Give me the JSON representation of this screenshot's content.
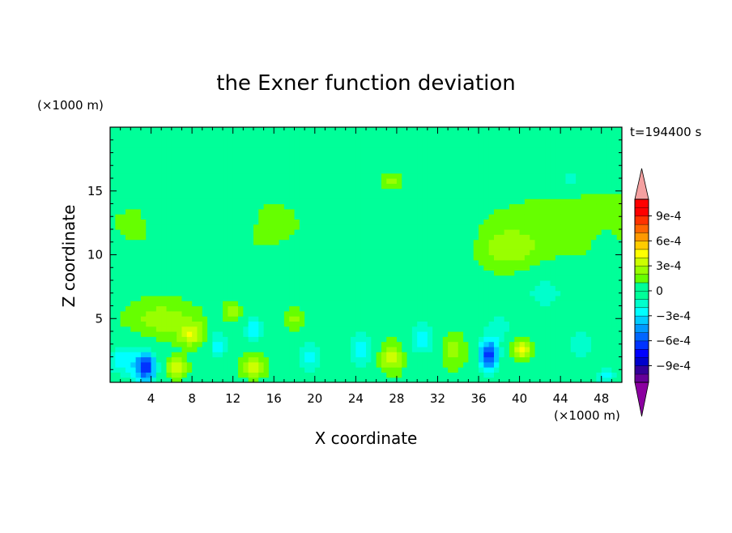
{
  "chart_data": {
    "type": "heatmap",
    "title": "the Exner function deviation",
    "xlabel": "X coordinate",
    "ylabel": "Z coordinate",
    "x_unit": "(×1000 m)",
    "y_unit": "(×1000 m)",
    "time_label": "t=194400 s",
    "xlim": [
      0,
      50
    ],
    "ylim": [
      0,
      20
    ],
    "x_ticks": [
      4,
      8,
      12,
      16,
      20,
      24,
      28,
      32,
      36,
      40,
      44,
      48
    ],
    "y_ticks": [
      5,
      10,
      15
    ],
    "colorbar": {
      "levels": [
        -0.0011,
        -0.001,
        -0.0009,
        -0.0008,
        -0.0007,
        -0.0006,
        -0.0005,
        -0.0004,
        -0.0003,
        -0.0002,
        -0.0001,
        0,
        0.0001,
        0.0002,
        0.0003,
        0.0004,
        0.0005,
        0.0006,
        0.0007,
        0.0008,
        0.0009,
        0.001,
        0.0011
      ],
      "tick_labels": [
        {
          "value": 0.0009,
          "label": "9e-4"
        },
        {
          "value": 0.0006,
          "label": "6e-4"
        },
        {
          "value": 0.0003,
          "label": "3e-4"
        },
        {
          "value": 0,
          "label": "0"
        },
        {
          "value": -0.0003,
          "label": "−3e-4"
        },
        {
          "value": -0.0006,
          "label": "−6e-4"
        },
        {
          "value": -0.0009,
          "label": "−9e-4"
        }
      ],
      "colors": [
        "#00ff99",
        "#66ff00",
        "#99ff00",
        "#ccff00",
        "#ffff00",
        "#ffcc00",
        "#ff9900",
        "#ff6600",
        "#ff3300",
        "#ff0000",
        "#ff0000"
      ],
      "neg_colors": [
        "#00ff99",
        "#00ffcc",
        "#00ffff",
        "#00ccff",
        "#0099ff",
        "#0066ff",
        "#0033ff",
        "#0000ff",
        "#0000cc",
        "#330099",
        "#660099"
      ],
      "over_color": "#f4a0a0",
      "under_color": "#8b00a0"
    },
    "field_background": 5e-05,
    "features": [
      {
        "x": 3.5,
        "z": 1.2,
        "value": -0.0007,
        "sx": 1.1,
        "sz": 1.3
      },
      {
        "x": 1.2,
        "z": 1.8,
        "value": -0.0003,
        "sx": 1.5,
        "sz": 1.5
      },
      {
        "x": 6.5,
        "z": 1.2,
        "value": 0.0003,
        "sx": 1.0,
        "sz": 0.8
      },
      {
        "x": 8.0,
        "z": 3.8,
        "value": 0.0003,
        "sx": 1.3,
        "sz": 0.9
      },
      {
        "x": 5.0,
        "z": 5.0,
        "value": 0.0002,
        "sx": 3.5,
        "sz": 1.6
      },
      {
        "x": 10.5,
        "z": 3.0,
        "value": -0.0003,
        "sx": 1.0,
        "sz": 1.3
      },
      {
        "x": 14.0,
        "z": 1.3,
        "value": 0.0003,
        "sx": 1.2,
        "sz": 0.9
      },
      {
        "x": 14.0,
        "z": 4.2,
        "value": -0.0003,
        "sx": 1.0,
        "sz": 1.4
      },
      {
        "x": 12.0,
        "z": 5.5,
        "value": 0.0002,
        "sx": 1.0,
        "sz": 0.8
      },
      {
        "x": 19.5,
        "z": 2.0,
        "value": -0.0003,
        "sx": 1.2,
        "sz": 1.5
      },
      {
        "x": 18.0,
        "z": 5.0,
        "value": 0.0002,
        "sx": 1.0,
        "sz": 0.8
      },
      {
        "x": 24.5,
        "z": 2.5,
        "value": -0.0003,
        "sx": 1.2,
        "sz": 1.8
      },
      {
        "x": 27.5,
        "z": 2.0,
        "value": 0.0003,
        "sx": 1.2,
        "sz": 1.2
      },
      {
        "x": 30.5,
        "z": 3.5,
        "value": -0.0003,
        "sx": 1.4,
        "sz": 1.6
      },
      {
        "x": 33.5,
        "z": 2.5,
        "value": 0.0002,
        "sx": 1.3,
        "sz": 1.4
      },
      {
        "x": 37.0,
        "z": 2.1,
        "value": -0.0007,
        "sx": 1.0,
        "sz": 1.3
      },
      {
        "x": 38.0,
        "z": 4.5,
        "value": -0.0002,
        "sx": 1.6,
        "sz": 1.4
      },
      {
        "x": 40.2,
        "z": 2.6,
        "value": 0.0004,
        "sx": 0.9,
        "sz": 0.8
      },
      {
        "x": 42.5,
        "z": 7.0,
        "value": -0.0002,
        "sx": 2.5,
        "sz": 1.6
      },
      {
        "x": 46.0,
        "z": 3.0,
        "value": -0.0002,
        "sx": 2.0,
        "sz": 1.6
      },
      {
        "x": 48.5,
        "z": 0.5,
        "value": -0.0003,
        "sx": 1.0,
        "sz": 0.8
      },
      {
        "x": 9.0,
        "z": 13.0,
        "value": -0.0002,
        "sx": 3.5,
        "sz": 2.0
      },
      {
        "x": 31.5,
        "z": 11.0,
        "value": -0.0001,
        "sx": 4.0,
        "sz": 1.6
      },
      {
        "x": 39.0,
        "z": 10.5,
        "value": 0.0002,
        "sx": 3.0,
        "sz": 1.6
      },
      {
        "x": 27.5,
        "z": 15.8,
        "value": 0.0002,
        "sx": 1.0,
        "sz": 0.5
      },
      {
        "x": 45.0,
        "z": 16.0,
        "value": -0.0002,
        "sx": 1.6,
        "sz": 0.8
      },
      {
        "x": 1.5,
        "z": 19.0,
        "value": -0.0001,
        "sx": 6.0,
        "sz": 1.5
      },
      {
        "x": 48.5,
        "z": 10.5,
        "value": -0.0002,
        "sx": 1.0,
        "sz": 1.0
      }
    ]
  }
}
